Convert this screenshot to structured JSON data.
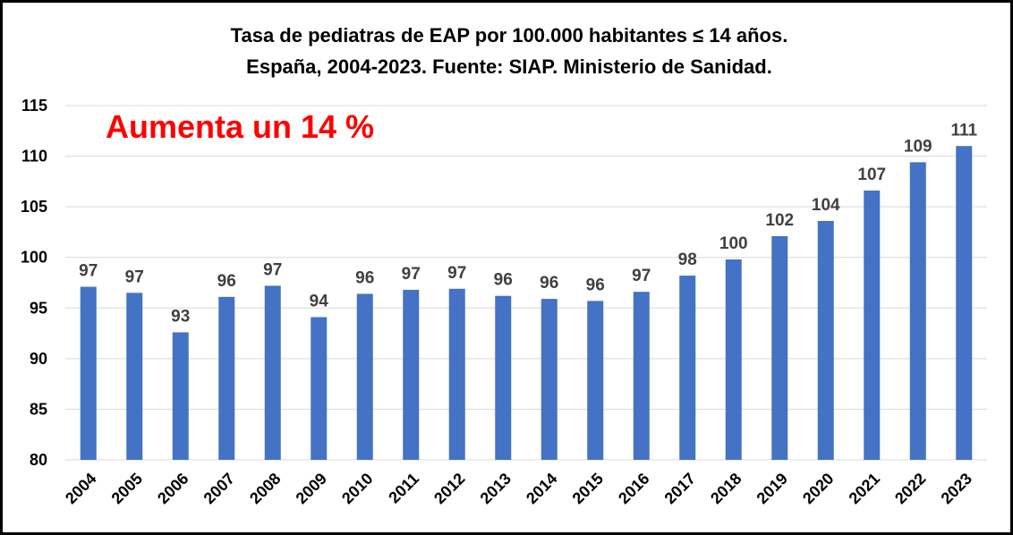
{
  "chart_data": {
    "type": "bar",
    "title": "Tasa de pediatras de EAP por 100.000 habitantes ≤ 14 años.",
    "subtitle": "España, 2004-2023. Fuente: SIAP. Ministerio de Sanidad.",
    "annotation": "Aumenta un 14 %",
    "annotation_color": "#ff0000",
    "bar_color": "#4472c4",
    "xlabel": "",
    "ylabel": "",
    "ylim": [
      80,
      115
    ],
    "yticks": [
      80,
      85,
      90,
      95,
      100,
      105,
      110,
      115
    ],
    "grid": true,
    "legend": "none",
    "categories": [
      "2004",
      "2005",
      "2006",
      "2007",
      "2008",
      "2009",
      "2010",
      "2011",
      "2012",
      "2013",
      "2014",
      "2015",
      "2016",
      "2017",
      "2018",
      "2019",
      "2020",
      "2021",
      "2022",
      "2023"
    ],
    "values": [
      97.1,
      96.5,
      92.6,
      96.1,
      97.2,
      94.1,
      96.4,
      96.8,
      96.9,
      96.2,
      95.9,
      95.7,
      96.6,
      98.2,
      99.8,
      102.1,
      103.6,
      106.6,
      109.4,
      111.0
    ],
    "data_labels": [
      "97",
      "97",
      "93",
      "96",
      "97",
      "94",
      "96",
      "97",
      "97",
      "96",
      "96",
      "96",
      "97",
      "98",
      "100",
      "102",
      "104",
      "107",
      "109",
      "111"
    ]
  }
}
